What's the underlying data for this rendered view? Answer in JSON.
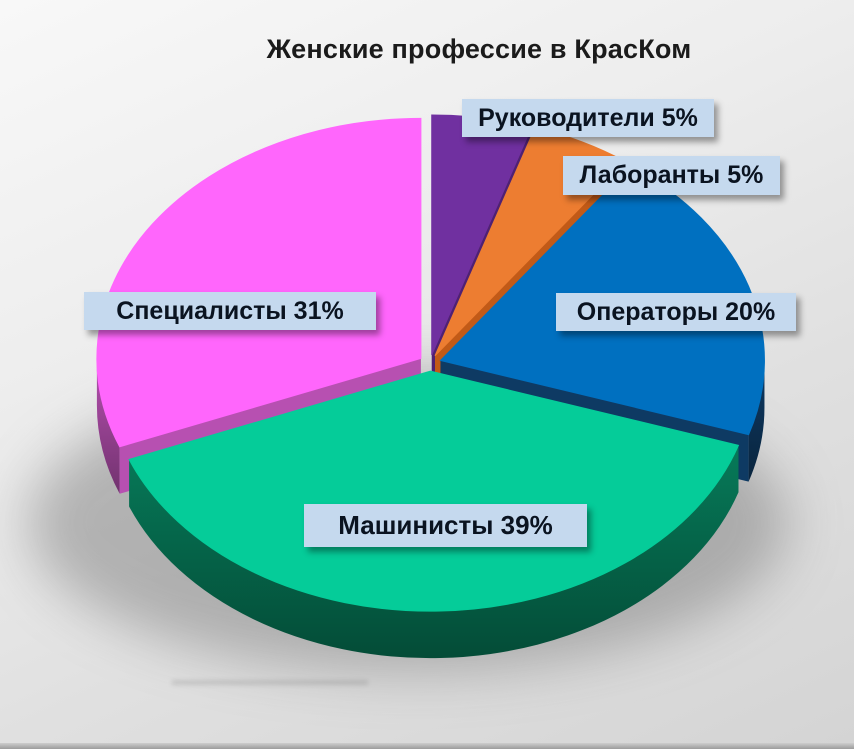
{
  "title": "Женские профессие в КрасКом",
  "background_color": "#e6e6e6",
  "callout_style": {
    "bg": "#c5d9ee",
    "text_color": "#0a1320"
  },
  "chart_data": {
    "type": "pie",
    "title": "Женские профессие в КрасКом",
    "unit": "%",
    "effect": "3d-exploded",
    "start_angle_deg": -90,
    "direction": "clockwise",
    "legend_position": "none",
    "slices": [
      {
        "label": "Руководители",
        "value": 5,
        "color": "#7030a0",
        "side_color": "#4f2173"
      },
      {
        "label": "Лаборанты",
        "value": 5,
        "color": "#ed7d31",
        "side_color": "#c25a17"
      },
      {
        "label": "Операторы",
        "value": 20,
        "color": "#0070c0",
        "side_color": "#0e3a63"
      },
      {
        "label": "Машинисты",
        "value": 39,
        "color": "#05cc99",
        "side_color": "#067a59"
      },
      {
        "label": "Специалисты",
        "value": 31,
        "color": "#ff66fc",
        "side_color": "#b750b1"
      }
    ],
    "callouts": [
      "Руководители 5%",
      "Лаборанты 5%",
      "Операторы 20%",
      "Машинисты 39%",
      "Специалисты 31%"
    ]
  }
}
